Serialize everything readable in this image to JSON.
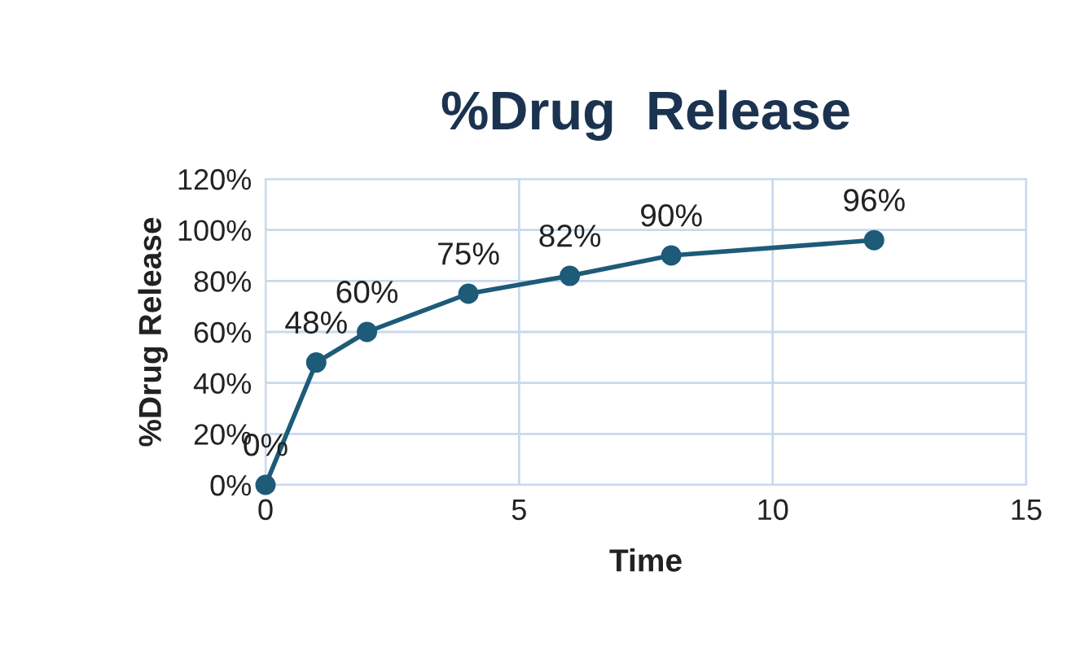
{
  "chart_data": {
    "type": "line",
    "title": "%Drug  Release",
    "xlabel": "Time",
    "ylabel": "%Drug Release",
    "x": [
      0,
      1,
      2,
      4,
      6,
      8,
      12
    ],
    "series": [
      {
        "color": "#1d5b78",
        "values": [
          0,
          48,
          60,
          75,
          82,
          90,
          96
        ],
        "value_labels": [
          "0%",
          "48%",
          "60%",
          "75%",
          "82%",
          "90%",
          "96%"
        ]
      }
    ],
    "xlim": [
      0,
      15
    ],
    "xticks": [
      0,
      5,
      10,
      15
    ],
    "ylim": [
      0,
      120
    ],
    "yticks": [
      {
        "value": 0,
        "label": "0%"
      },
      {
        "value": 20,
        "label": "20%"
      },
      {
        "value": 40,
        "label": "40%"
      },
      {
        "value": 60,
        "label": "60%"
      },
      {
        "value": 80,
        "label": "80%"
      },
      {
        "value": 100,
        "label": "100%"
      },
      {
        "value": 120,
        "label": "120%"
      }
    ],
    "grid": true,
    "marker": "circle",
    "line_style": "solid",
    "legend": false
  }
}
